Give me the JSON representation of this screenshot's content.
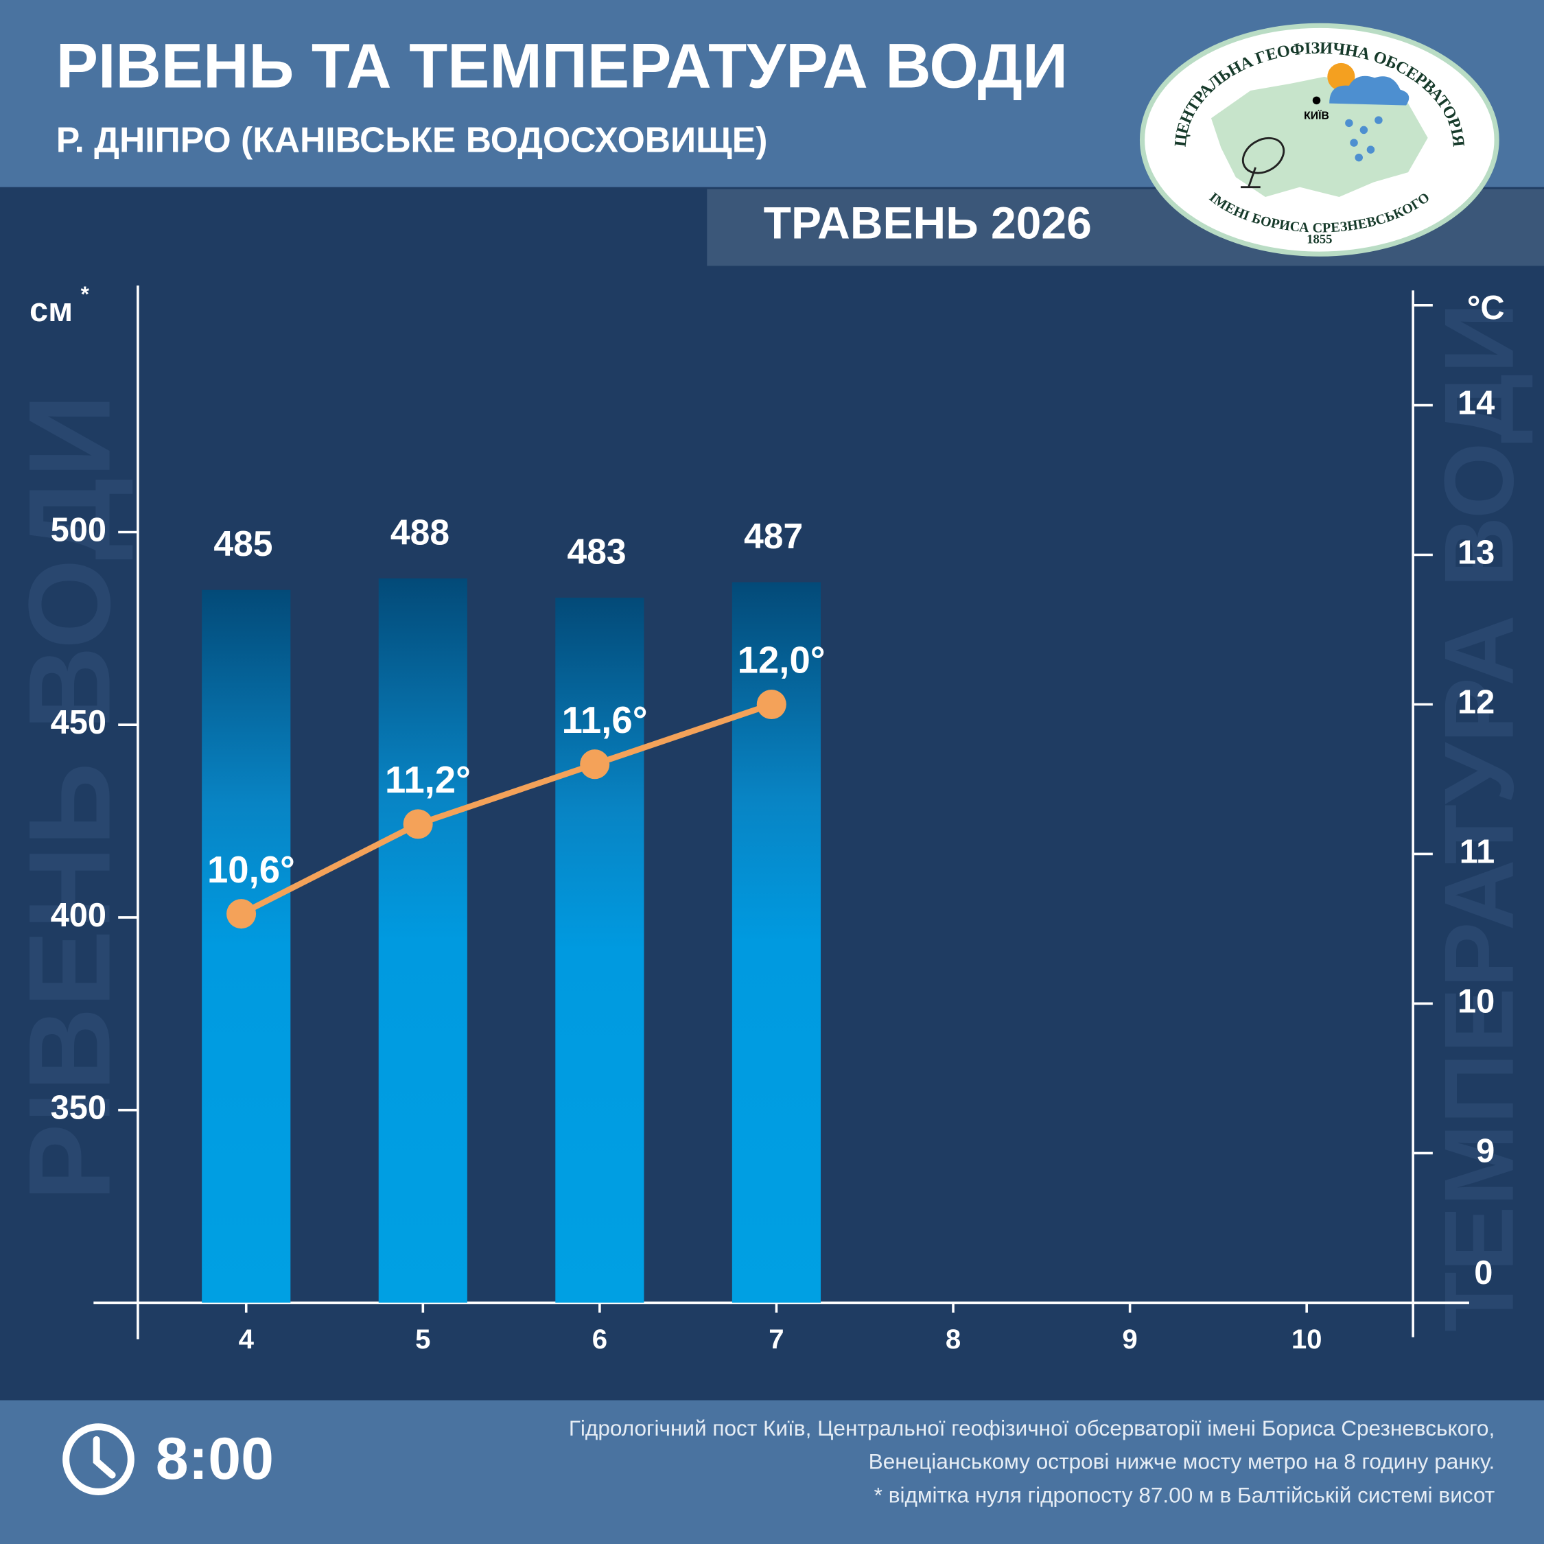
{
  "chart_data": {
    "type": "bar_line",
    "title": "РІВЕНЬ ТА ТЕМПЕРАТУРА ВОДИ",
    "subtitle": "Р. ДНІПРО (КАНІВСЬКЕ ВОДОСХОВИЩЕ)",
    "period": "ТРАВЕНЬ 2026",
    "y_label": "см",
    "y_label_note": "*",
    "y2_label": "°C",
    "y_watermark": "РІВЕНЬ ВОДИ",
    "y2_watermark": "ТЕМПЕРАТУРА ВОДИ",
    "categories": [
      "4",
      "5",
      "6",
      "7",
      "8",
      "9",
      "10"
    ],
    "series": [
      {
        "name": "Рівень води",
        "color": "#00a0e3",
        "values": [
          485,
          488,
          483,
          487,
          null,
          null,
          null
        ]
      },
      {
        "name": "Температура води",
        "color": "#f4a259",
        "axis": "y2",
        "values": [
          10.6,
          11.2,
          11.6,
          12.0,
          null,
          null,
          null
        ],
        "value_labels": [
          "10,6°",
          "11,2°",
          "11,6°",
          "12,0°",
          null,
          null,
          null
        ]
      }
    ],
    "ylim": [
      300,
      564
    ],
    "yticks": [
      350,
      400,
      450,
      500
    ],
    "y2lim": [
      8,
      14.8
    ],
    "y2ticks": [
      9,
      10,
      11,
      12,
      13,
      14
    ],
    "y2_break_label": "0",
    "time": "8:00",
    "logo": {
      "top_text": "ЦЕНТРАЛЬНА ГЕОФІЗИЧНА ОБСЕРВАТОРІЯ",
      "bottom_text": "ІМЕНІ БОРИСА СРЕЗНЕВСЬКОГО",
      "year": "1855",
      "city": "КИЇВ"
    },
    "footnote": [
      "Гідрологічний пост Київ, Центральної геофізичної обсерваторії імені Бориса Срезневського,",
      "Венеціанському острові нижче мосту метро  на 8 годину ранку.",
      "* відмітка нуля гідропосту 87.00 м в Балтійській системі висот"
    ]
  }
}
